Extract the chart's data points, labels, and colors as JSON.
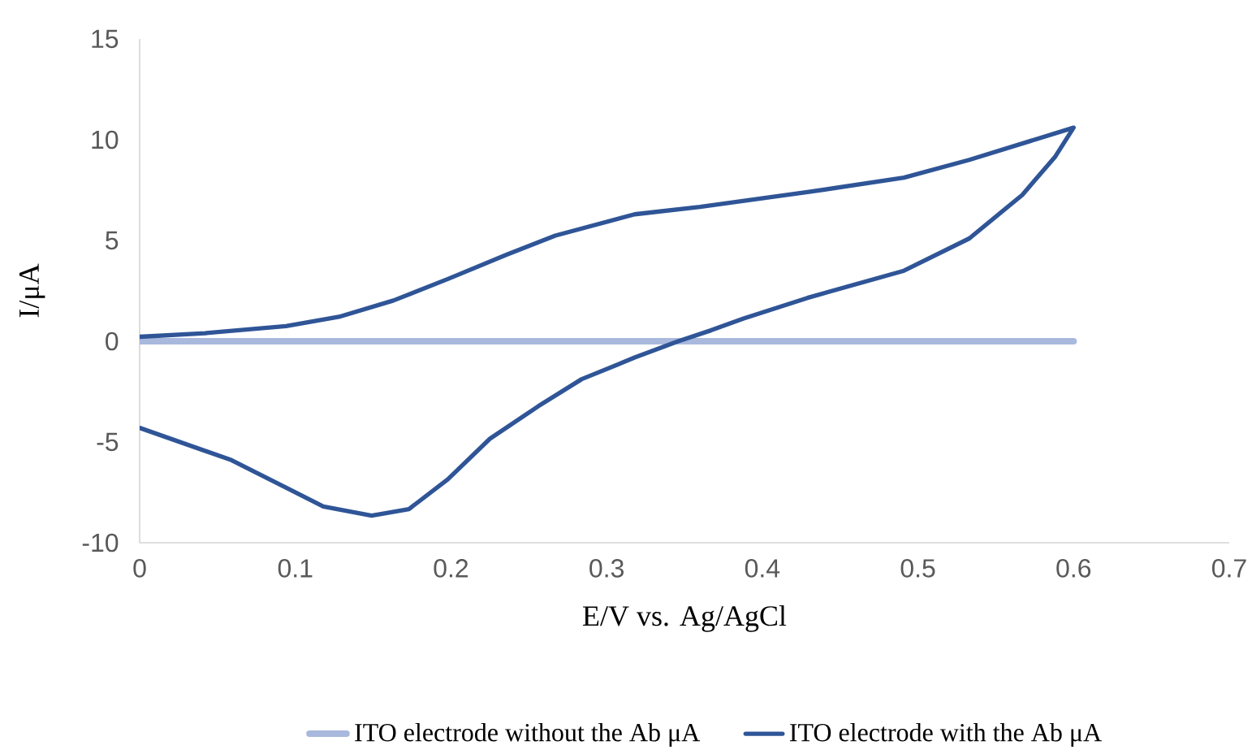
{
  "chart_data": {
    "type": "line",
    "xlabel": "E/V vs. Ag/AgCl",
    "ylabel": "I/μA",
    "xlim": [
      0,
      0.7
    ],
    "ylim": [
      -10,
      15
    ],
    "xticks": [
      0,
      0.1,
      0.2,
      0.3,
      0.4,
      0.5,
      0.6,
      0.7
    ],
    "yticks": [
      -10,
      -5,
      0,
      5,
      10,
      15
    ],
    "legend": "bottom",
    "series": [
      {
        "name": "ITO electrode without the Ab μA",
        "color": "#a9b8dd",
        "x": [
          0,
          0.6
        ],
        "values": [
          0,
          0
        ]
      },
      {
        "name": "ITO electrode with the Ab μA",
        "color": "#2f5597",
        "x": [
          0,
          0.059,
          0.094,
          0.118,
          0.149,
          0.173,
          0.198,
          0.225,
          0.256,
          0.284,
          0.318,
          0.346,
          0.367,
          0.388,
          0.429,
          0.491,
          0.533,
          0.567,
          0.588,
          0.6,
          0.533,
          0.491,
          0.429,
          0.36,
          0.318,
          0.267,
          0.236,
          0.198,
          0.163,
          0.128,
          0.094,
          0.042,
          0
        ],
        "values": [
          -4.3,
          -5.9,
          -7.26,
          -8.2,
          -8.65,
          -8.33,
          -6.85,
          -4.84,
          -3.23,
          -1.88,
          -0.81,
          0,
          0.54,
          1.13,
          2.15,
          3.5,
          5.1,
          7.26,
          9.14,
          10.6,
          9.0,
          8.12,
          7.4,
          6.67,
          6.3,
          5.24,
          4.3,
          3.09,
          2.02,
          1.21,
          0.75,
          0.4,
          0.22
        ]
      }
    ]
  }
}
